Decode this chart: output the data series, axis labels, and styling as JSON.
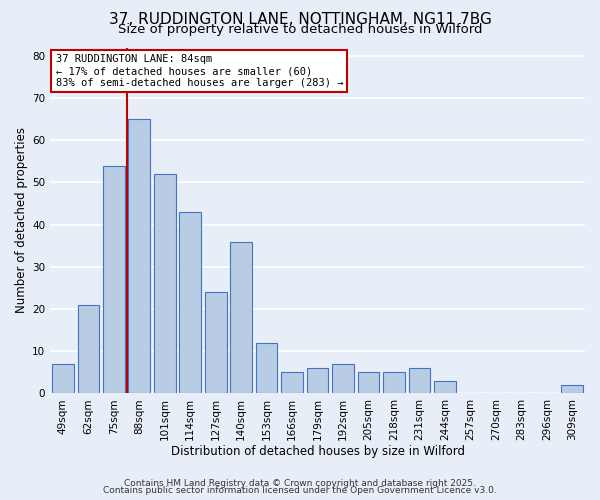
{
  "title": "37, RUDDINGTON LANE, NOTTINGHAM, NG11 7BG",
  "subtitle": "Size of property relative to detached houses in Wilford",
  "xlabel": "Distribution of detached houses by size in Wilford",
  "ylabel": "Number of detached properties",
  "categories": [
    "49sqm",
    "62sqm",
    "75sqm",
    "88sqm",
    "101sqm",
    "114sqm",
    "127sqm",
    "140sqm",
    "153sqm",
    "166sqm",
    "179sqm",
    "192sqm",
    "205sqm",
    "218sqm",
    "231sqm",
    "244sqm",
    "257sqm",
    "270sqm",
    "283sqm",
    "296sqm",
    "309sqm"
  ],
  "values": [
    7,
    21,
    54,
    65,
    52,
    43,
    24,
    36,
    12,
    5,
    6,
    7,
    5,
    5,
    6,
    3,
    0,
    0,
    0,
    0,
    2
  ],
  "bar_color": "#b8cce4",
  "bar_edge_color": "#4472c4",
  "vline_x": 2.5,
  "vline_color": "#c00000",
  "annotation_text": "37 RUDDINGTON LANE: 84sqm\n← 17% of detached houses are smaller (60)\n83% of semi-detached houses are larger (283) →",
  "annotation_box_color": "#ffffff",
  "annotation_box_edge": "#c00000",
  "ylim": [
    0,
    82
  ],
  "yticks": [
    0,
    10,
    20,
    30,
    40,
    50,
    60,
    70,
    80
  ],
  "background_color": "#e8eef7",
  "grid_color": "#ffffff",
  "footer1": "Contains HM Land Registry data © Crown copyright and database right 2025.",
  "footer2": "Contains public sector information licensed under the Open Government Licence v3.0.",
  "title_fontsize": 11,
  "subtitle_fontsize": 9.5,
  "label_fontsize": 8.5,
  "tick_fontsize": 7.5,
  "footer_fontsize": 6.5,
  "annotation_fontsize": 7.5
}
